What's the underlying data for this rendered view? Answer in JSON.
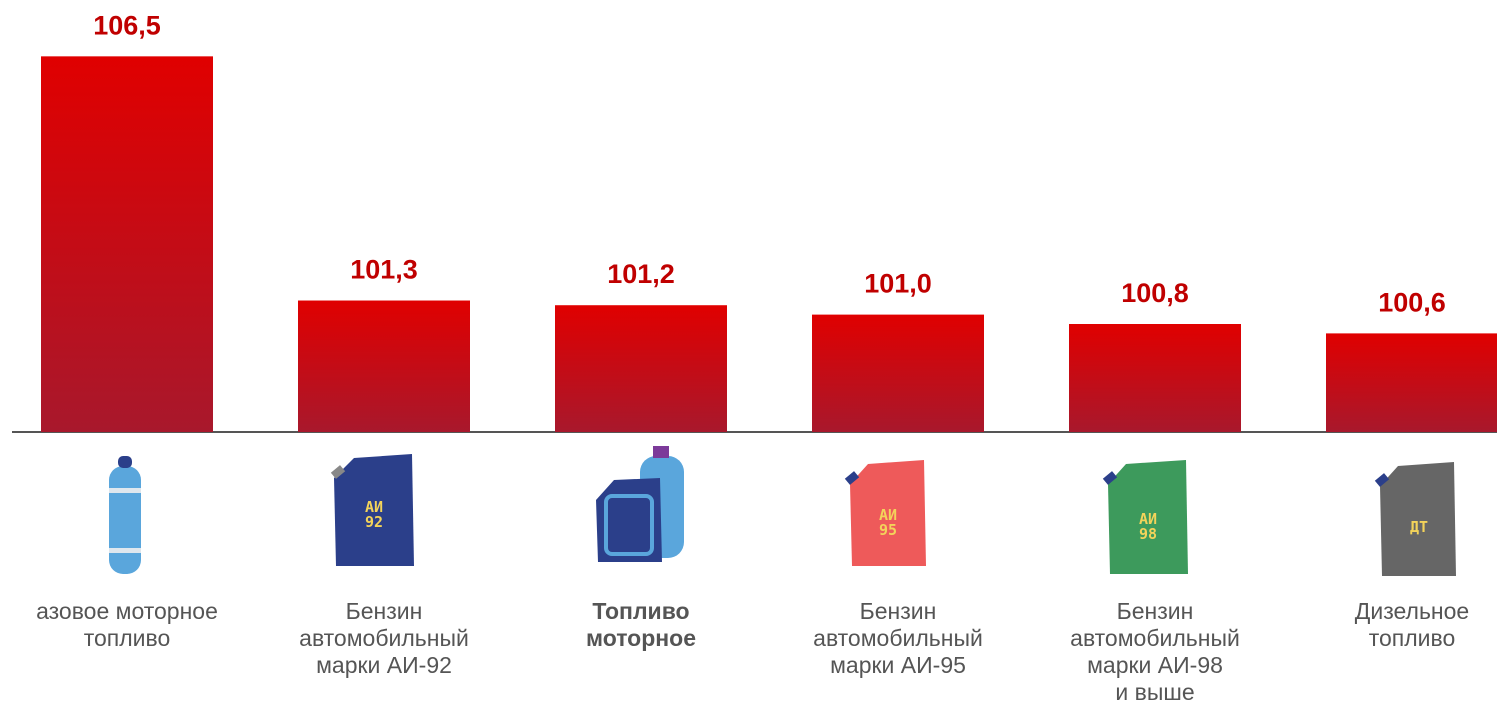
{
  "chart_data": {
    "type": "bar",
    "categories": [
      "азовое моторное\nтопливо",
      "Бензин\nавтомобильный\nмарки АИ-92",
      "Топливо\nмоторное",
      "Бензин\nавтомобильный\nмарки АИ-95",
      "Бензин\nавтомобильный\nмарки АИ-98\nи выше",
      "Дизельное\nтопливо"
    ],
    "values": [
      106.5,
      101.3,
      101.2,
      101.0,
      100.8,
      100.6
    ],
    "value_labels": [
      "106,5",
      "101,3",
      "101,2",
      "101,0",
      "100,8",
      "100,6"
    ],
    "emphasis": [
      false,
      false,
      true,
      false,
      false,
      false
    ],
    "icon_labels": [
      null,
      "АИ\n92",
      null,
      "АИ\n95",
      "АИ\n98",
      "ДТ"
    ],
    "color": "#d9000d",
    "ylim": [
      98.5,
      107.7
    ]
  }
}
